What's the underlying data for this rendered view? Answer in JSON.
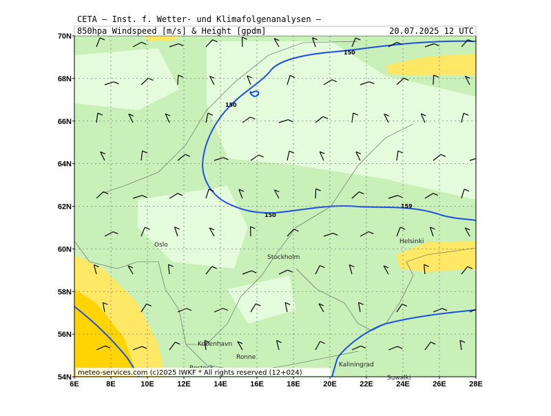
{
  "header": {
    "title": "CETA – Inst. f. Wetter- und Klimafolgenanalysen –",
    "subtitle": "850hpa Windspeed [m/s] & Height [gpdm]",
    "datetime": "20.07.2025 12 UTC"
  },
  "axes": {
    "lat_labels": [
      "70N",
      "68N",
      "66N",
      "64N",
      "62N",
      "60N",
      "58N",
      "56N",
      "54N"
    ],
    "lon_labels": [
      "6E",
      "8E",
      "10E",
      "12E",
      "14E",
      "16E",
      "18E",
      "20E",
      "22E",
      "24E",
      "26E",
      "28E"
    ]
  },
  "cities": [
    "Oslo",
    "Stockholm",
    "Helsinki",
    "Kobenhavn",
    "Ronne",
    "Rostock",
    "Kaliningrad",
    "Suwalki"
  ],
  "contour_labels": [
    "150",
    "150",
    "150",
    "159"
  ],
  "footer": "meteo-services.com (c)2025 IWKF * All rights reserved (12+024)"
}
